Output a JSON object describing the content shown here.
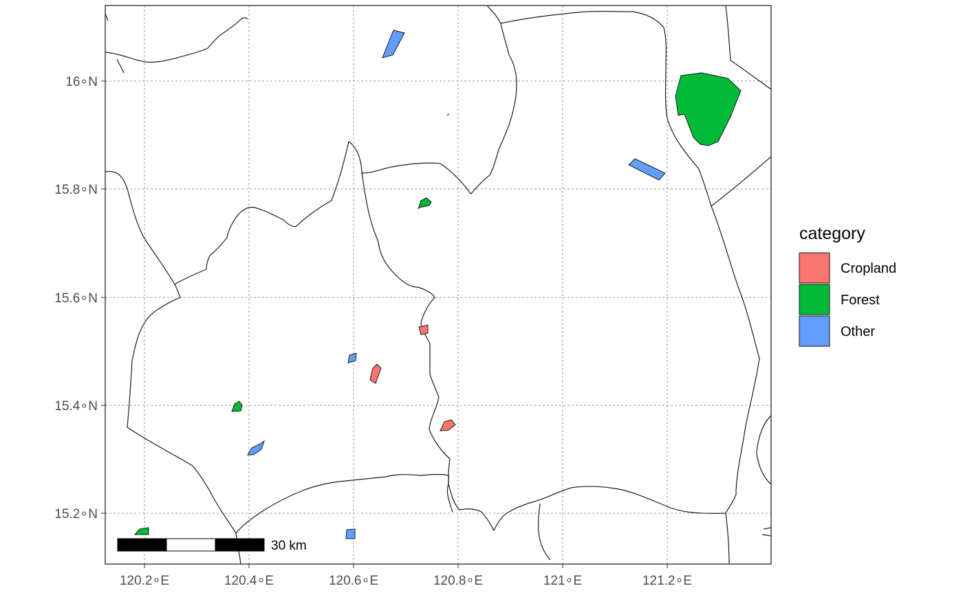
{
  "map": {
    "x_ticks": [
      "120.2∘E",
      "120.4∘E",
      "120.6∘E",
      "120.8∘E",
      "121∘E",
      "121.2∘E"
    ],
    "y_ticks": [
      "16∘N",
      "15.8∘N",
      "15.6∘N",
      "15.4∘N",
      "15.2∘N"
    ],
    "grid": "dotted",
    "scale_bar": {
      "label": "30 km"
    }
  },
  "legend": {
    "title": "category",
    "items": [
      {
        "label": "Cropland",
        "color": "#F8766D"
      },
      {
        "label": "Forest",
        "color": "#00BA38"
      },
      {
        "label": "Other",
        "color": "#619CFF"
      }
    ]
  }
}
